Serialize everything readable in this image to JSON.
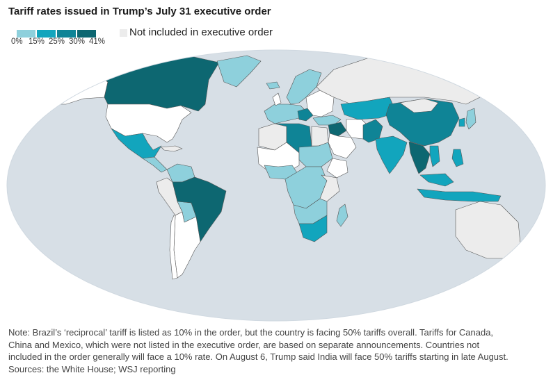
{
  "title": "Tariff rates issued in Trump’s July 31 executive order",
  "legend": {
    "ticks": [
      "0%",
      "15%",
      "25%",
      "30%",
      "41%"
    ],
    "colors": [
      "#8ed0dc",
      "#12a5bd",
      "#0f8496",
      "#0d6771"
    ],
    "not_included_label": "Not included in executive order",
    "not_included_color": "#ececec"
  },
  "colors": {
    "ocean": "#d7dfe6",
    "not_included": "#ececec",
    "not_listed": "#ffffff",
    "border": "#555555"
  },
  "note": {
    "line1": "Note: Brazil’s ‘reciprocal’ tariff is listed as 10% in the order, but the country is facing 50% tariffs overall. Tariffs for Canada,",
    "line2": "China and Mexico, which were not listed in the executive order, are based on separate announcements. Countries not",
    "line3": "included in the order generally will face a 10% rate. On August 6, Trump said India will face 50% tariffs starting in late August.",
    "line4": "Sources: the White House; WSJ reporting"
  }
}
